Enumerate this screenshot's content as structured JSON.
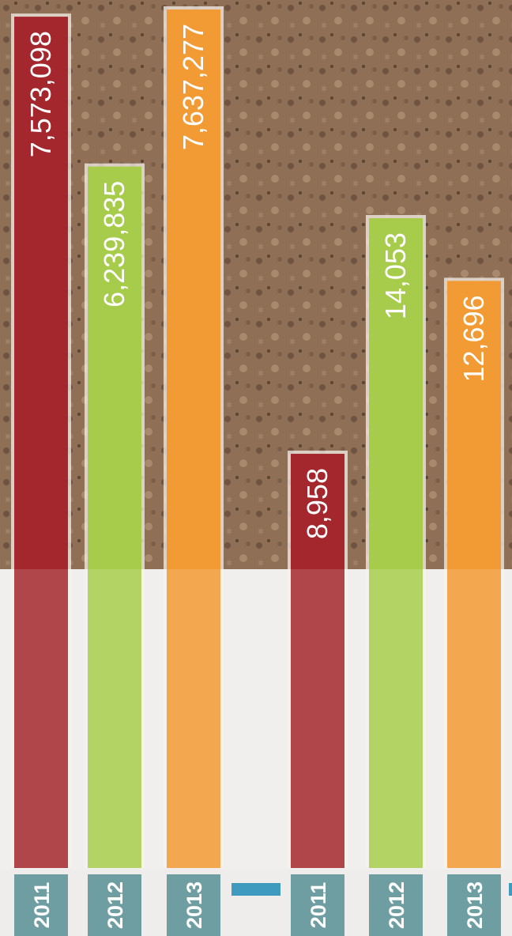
{
  "chart_data": [
    {
      "type": "bar",
      "categories": [
        "2011",
        "2012",
        "2013"
      ],
      "values": [
        7573098,
        6239835,
        7637277
      ],
      "value_labels": [
        "7,573,098",
        "6,239,835",
        "7,637,277"
      ],
      "colors": [
        "#a3272d",
        "#a7cc4b",
        "#f29a33"
      ]
    },
    {
      "type": "bar",
      "categories": [
        "2011",
        "2012",
        "2013"
      ],
      "values": [
        8958,
        14053,
        12696
      ],
      "value_labels": [
        "8,958",
        "14,053",
        "12,696"
      ],
      "colors": [
        "#a3272d",
        "#a7cc4b",
        "#f29a33"
      ]
    }
  ]
}
